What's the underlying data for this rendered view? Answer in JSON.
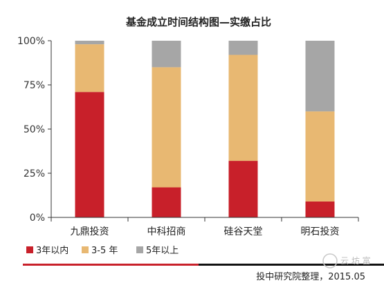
{
  "chart_data": {
    "type": "bar",
    "stacked": true,
    "title": "基金成立时间结构图—实缴占比",
    "categories": [
      "九鼎投资",
      "中科招商",
      "硅谷天堂",
      "明石投资"
    ],
    "series": [
      {
        "name": "3年以内",
        "color": "#c8202a",
        "values": [
          71,
          17,
          32,
          9
        ]
      },
      {
        "name": "3-5 年",
        "color": "#e8b872",
        "values": [
          27,
          68,
          60,
          51
        ]
      },
      {
        "name": "5年以上",
        "color": "#a6a6a6",
        "values": [
          2,
          15,
          8,
          40
        ]
      }
    ],
    "ylim": [
      0,
      100
    ],
    "yticks": [
      "0%",
      "25%",
      "50%",
      "75%",
      "100%"
    ],
    "ytick_values": [
      0,
      25,
      50,
      75,
      100
    ],
    "grid": false,
    "legend_position": "bottom-left"
  },
  "footer": {
    "source": "投中研究院整理，2015.05",
    "watermark": "云 坊 富"
  }
}
